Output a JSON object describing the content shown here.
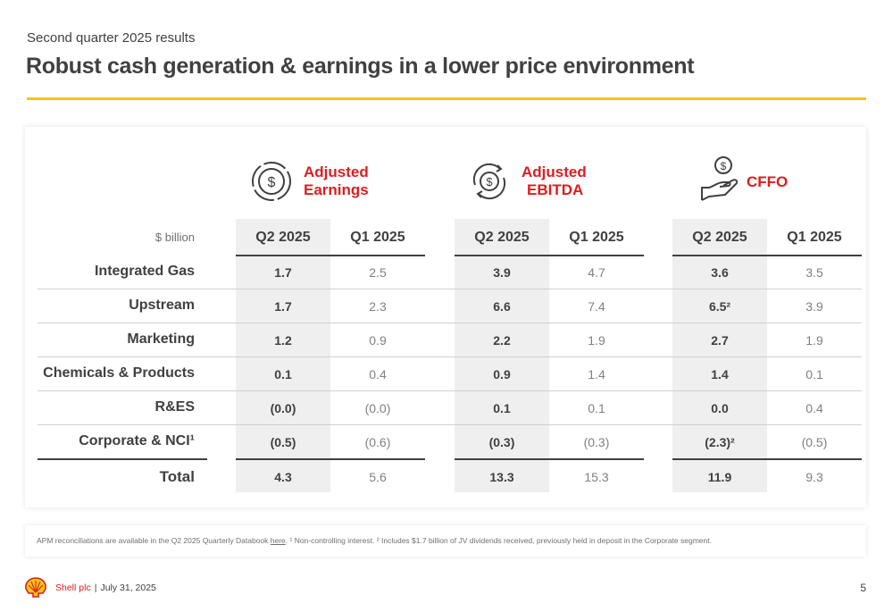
{
  "header": {
    "subtitle": "Second quarter 2025 results",
    "title": "Robust cash generation & earnings in a lower price environment"
  },
  "groups": [
    {
      "label_line1": "Adjusted",
      "label_line2": "Earnings",
      "icon": "dollar-circle-icon",
      "col1": "Q2 2025",
      "col2": "Q1 2025"
    },
    {
      "label_line1": "Adjusted",
      "label_line2": "EBITDA",
      "icon": "dollar-cycle-icon",
      "col1": "Q2 2025",
      "col2": "Q1 2025"
    },
    {
      "label_line1": "CFFO",
      "label_line2": "",
      "icon": "hand-dollar-icon",
      "col1": "Q2 2025",
      "col2": "Q1 2025"
    }
  ],
  "table": {
    "unit": "$  billion",
    "rows": [
      {
        "label": "Integrated Gas",
        "values": [
          "1.7",
          "2.5",
          "3.9",
          "4.7",
          "3.6",
          "3.5"
        ]
      },
      {
        "label": "Upstream",
        "values": [
          "1.7",
          "2.3",
          "6.6",
          "7.4",
          "6.5²",
          "3.9"
        ]
      },
      {
        "label": "Marketing",
        "values": [
          "1.2",
          "0.9",
          "2.2",
          "1.9",
          "2.7",
          "1.9"
        ]
      },
      {
        "label": "Chemicals & Products",
        "values": [
          "0.1",
          "0.4",
          "0.9",
          "1.4",
          "1.4",
          "0.1"
        ]
      },
      {
        "label": "R&ES",
        "values": [
          "(0.0)",
          "(0.0)",
          "0.1",
          "0.1",
          "0.0",
          "0.4"
        ]
      },
      {
        "label": "Corporate & NCI¹",
        "values": [
          "(0.5)",
          "(0.6)",
          "(0.3)",
          "(0.3)",
          "(2.3)²",
          "(0.5)"
        ]
      },
      {
        "label": "Total",
        "values": [
          "4.3",
          "5.6",
          "13.3",
          "15.3",
          "11.9",
          "9.3"
        ]
      }
    ]
  },
  "footnote": {
    "before_link": "APM reconciliations are available in the Q2 2025 Quarterly Databook ",
    "link": "here",
    "after_link": ". ¹ Non-controlling interest. ² Includes $1.7 billion of JV dividends received, previously held in deposit in the Corporate segment."
  },
  "footer": {
    "company": "Shell plc",
    "date": "July 31, 2025",
    "page": "5"
  },
  "colors": {
    "accent_red": "#dd1d21",
    "accent_yellow": "#f5c518",
    "logo_red": "#dd1d21"
  }
}
